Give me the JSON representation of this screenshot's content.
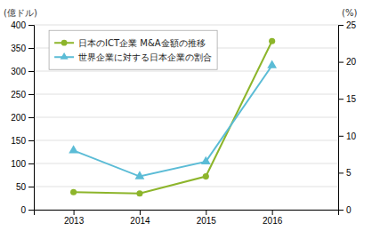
{
  "chart_data": {
    "type": "line",
    "x": [
      2013,
      2014,
      2015,
      2016
    ],
    "xlim": [
      2012.4,
      2017.0
    ],
    "xticks": [
      2013,
      2014,
      2015,
      2016
    ],
    "ylim": [
      0,
      400
    ],
    "yticks": [
      0,
      50,
      100,
      150,
      200,
      250,
      300,
      350,
      400
    ],
    "y2lim": [
      0,
      25
    ],
    "y2ticks": [
      0,
      5,
      10,
      15,
      20,
      25
    ],
    "y_label": "(億ドル)",
    "y2_label": "(%)",
    "grid": true,
    "legend": "upper left",
    "series": [
      {
        "name": "日本のICT企業 M&A金額の推移",
        "color": "#8db52b",
        "marker": "circle",
        "values": [
          38,
          35,
          72,
          365
        ]
      },
      {
        "name": "世界企業に対する日本企業の割合",
        "color": "#5bbcd6",
        "marker": "triangle",
        "axis": "y2",
        "values": [
          8.0,
          4.5,
          6.5,
          19.5
        ]
      }
    ]
  }
}
